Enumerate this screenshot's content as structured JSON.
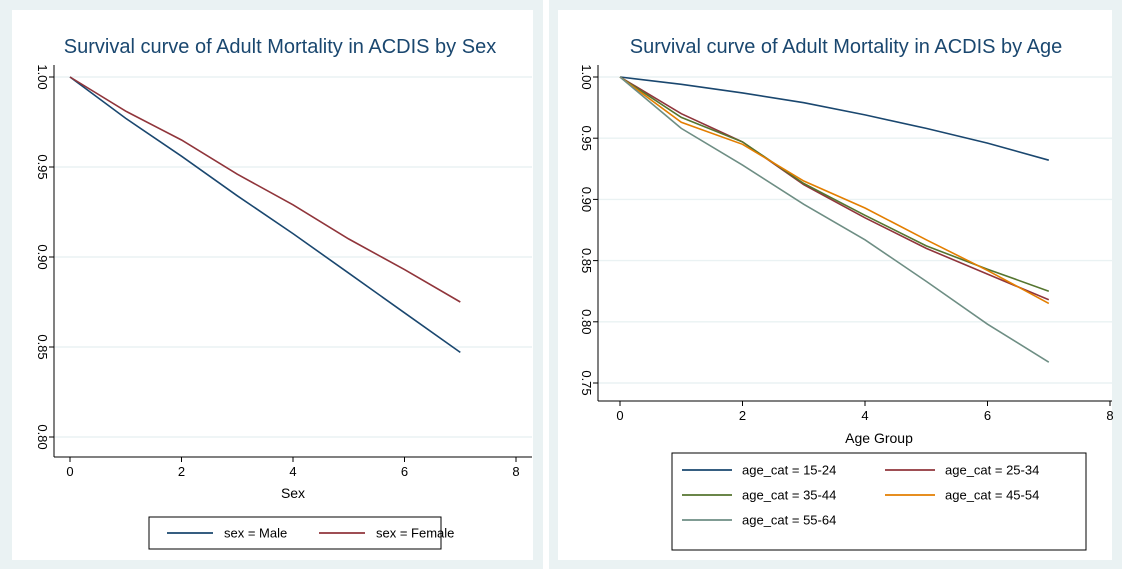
{
  "chart_data": [
    {
      "type": "line",
      "title": "Survival curve of Adult Mortality in ACDIS by Sex",
      "xlabel": "Sex",
      "ylabel": "",
      "xlim": [
        0,
        8
      ],
      "ylim": [
        0.8,
        1.0
      ],
      "xticks": [
        "0",
        "2",
        "4",
        "6",
        "8"
      ],
      "yticks": [
        "0.80",
        "0.85",
        "0.90",
        "0.95",
        "1.00"
      ],
      "grid": true,
      "legend_position": "bottom",
      "series": [
        {
          "name": "sex = Male",
          "color": "#1a476f",
          "x": [
            0,
            1,
            2,
            3,
            4,
            5,
            6,
            7
          ],
          "y": [
            1.0,
            0.977,
            0.956,
            0.934,
            0.913,
            0.891,
            0.869,
            0.847
          ]
        },
        {
          "name": "sex = Female",
          "color": "#90353b",
          "x": [
            0,
            1,
            2,
            3,
            4,
            5,
            6,
            7
          ],
          "y": [
            1.0,
            0.981,
            0.965,
            0.946,
            0.929,
            0.91,
            0.893,
            0.875
          ]
        }
      ]
    },
    {
      "type": "line",
      "title": "Survival curve of Adult Mortality in ACDIS by Age",
      "xlabel": "Age Group",
      "ylabel": "",
      "xlim": [
        0,
        8
      ],
      "ylim": [
        0.75,
        1.0
      ],
      "xticks": [
        "0",
        "2",
        "4",
        "6",
        "8"
      ],
      "yticks": [
        "0.75",
        "0.80",
        "0.85",
        "0.90",
        "0.95",
        "1.00"
      ],
      "grid": true,
      "legend_position": "bottom",
      "series": [
        {
          "name": "age_cat = 15-24",
          "color": "#1a476f",
          "x": [
            0,
            1,
            2,
            3,
            4,
            5,
            6,
            7
          ],
          "y": [
            1.0,
            0.994,
            0.987,
            0.979,
            0.969,
            0.958,
            0.946,
            0.932
          ]
        },
        {
          "name": "age_cat = 25-34",
          "color": "#90353b",
          "x": [
            0,
            1,
            2,
            3,
            4,
            5,
            6,
            7
          ],
          "y": [
            1.0,
            0.97,
            0.947,
            0.912,
            0.885,
            0.86,
            0.839,
            0.818
          ]
        },
        {
          "name": "age_cat = 35-44",
          "color": "#55752f",
          "x": [
            0,
            1,
            2,
            3,
            4,
            5,
            6,
            7
          ],
          "y": [
            1.0,
            0.967,
            0.947,
            0.913,
            0.887,
            0.862,
            0.843,
            0.825
          ]
        },
        {
          "name": "age_cat = 45-54",
          "color": "#e37e00",
          "x": [
            0,
            1,
            2,
            3,
            4,
            5,
            6,
            7
          ],
          "y": [
            1.0,
            0.963,
            0.945,
            0.915,
            0.893,
            0.867,
            0.842,
            0.815
          ]
        },
        {
          "name": "age_cat = 55-64",
          "color": "#6e8e84",
          "x": [
            0,
            1,
            2,
            3,
            4,
            5,
            6,
            7
          ],
          "y": [
            1.0,
            0.958,
            0.928,
            0.896,
            0.867,
            0.833,
            0.798,
            0.767
          ]
        }
      ]
    }
  ]
}
